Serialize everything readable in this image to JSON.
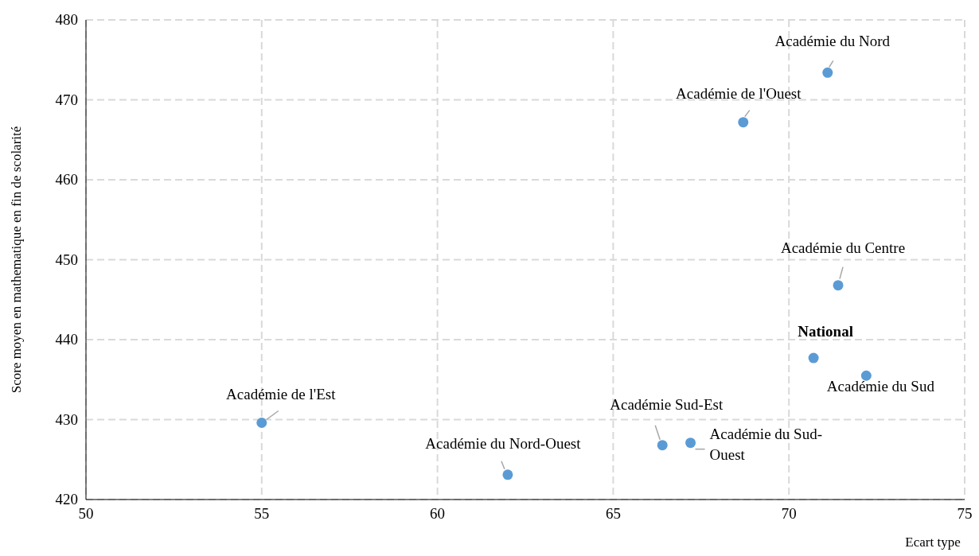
{
  "chart_data": {
    "type": "scatter",
    "xlabel": "Ecart type",
    "ylabel": "Score moyen en mathematique en fin de scolarité",
    "xlim": [
      50,
      75
    ],
    "xticks": [
      50,
      55,
      60,
      65,
      70,
      75
    ],
    "ylim": [
      420,
      480
    ],
    "yticks": [
      420,
      430,
      440,
      450,
      460,
      470,
      480
    ],
    "grid": true,
    "marker": "circle",
    "series": [
      {
        "name": "Académie du Nord",
        "color": "#5b9bd5",
        "x": [
          71.1
        ],
        "values": [
          473.4
        ]
      },
      {
        "name": "Académie de l'Ouest",
        "color": "#5b9bd5",
        "x": [
          68.7
        ],
        "values": [
          467.2
        ]
      },
      {
        "name": "Académie du Centre",
        "color": "#5b9bd5",
        "x": [
          71.4
        ],
        "values": [
          446.8
        ]
      },
      {
        "name": "National",
        "color": "#5b9bd5",
        "x": [
          70.7
        ],
        "values": [
          437.7
        ]
      },
      {
        "name": "Académie du Sud",
        "color": "#5b9bd5",
        "x": [
          72.2
        ],
        "values": [
          435.5
        ]
      },
      {
        "name": "Académie de l'Est",
        "color": "#5b9bd5",
        "x": [
          55.0
        ],
        "values": [
          429.6
        ]
      },
      {
        "name": "Académie Sud-Est",
        "color": "#5b9bd5",
        "x": [
          66.4
        ],
        "values": [
          426.8
        ]
      },
      {
        "name": "Académie du Sud-Ouest",
        "color": "#5b9bd5",
        "x": [
          67.2
        ],
        "values": [
          427.1
        ]
      },
      {
        "name": "Académie du Nord-Ouest",
        "color": "#5b9bd5",
        "x": [
          62.0
        ],
        "values": [
          423.1
        ]
      }
    ]
  }
}
